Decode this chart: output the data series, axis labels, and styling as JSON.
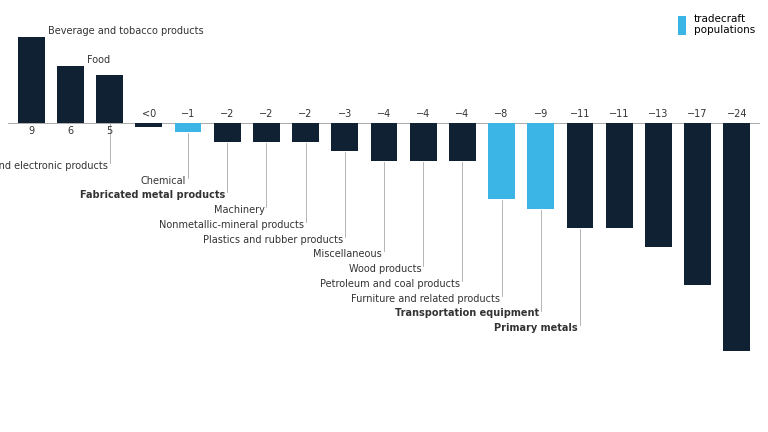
{
  "bars": [
    {
      "label": "Beverage and tobacco products",
      "value": 9,
      "disp": "9",
      "color": "#0f2133",
      "bold": false,
      "has_label": true
    },
    {
      "label": "Food",
      "value": 6,
      "disp": "6",
      "color": "#0f2133",
      "bold": false,
      "has_label": true
    },
    {
      "label": "Computer and electronic products",
      "value": 5,
      "disp": "5",
      "color": "#0f2133",
      "bold": false,
      "has_label": true
    },
    {
      "label": "",
      "value": -0.4,
      "disp": "<0",
      "color": "#0f2133",
      "bold": false,
      "has_label": false
    },
    {
      "label": "Chemical",
      "value": -1,
      "disp": "−1",
      "color": "#3ab5e6",
      "bold": false,
      "has_label": true
    },
    {
      "label": "Fabricated metal products",
      "value": -2,
      "disp": "−2",
      "color": "#0f2133",
      "bold": true,
      "has_label": true
    },
    {
      "label": "Machinery",
      "value": -2,
      "disp": "−2",
      "color": "#0f2133",
      "bold": false,
      "has_label": true
    },
    {
      "label": "Nonmetallic-mineral products",
      "value": -2,
      "disp": "−2",
      "color": "#0f2133",
      "bold": false,
      "has_label": true
    },
    {
      "label": "Plastics and rubber products",
      "value": -3,
      "disp": "−3",
      "color": "#0f2133",
      "bold": false,
      "has_label": true
    },
    {
      "label": "Miscellaneous",
      "value": -4,
      "disp": "−4",
      "color": "#0f2133",
      "bold": false,
      "has_label": true
    },
    {
      "label": "Wood products",
      "value": -4,
      "disp": "−4",
      "color": "#0f2133",
      "bold": false,
      "has_label": true
    },
    {
      "label": "Petroleum and coal products",
      "value": -4,
      "disp": "−4",
      "color": "#0f2133",
      "bold": false,
      "has_label": true
    },
    {
      "label": "Furniture and related products",
      "value": -8,
      "disp": "−8",
      "color": "#3ab5e6",
      "bold": false,
      "has_label": true
    },
    {
      "label": "Transportation equipment",
      "value": -9,
      "disp": "−9",
      "color": "#3ab5e6",
      "bold": true,
      "has_label": true
    },
    {
      "label": "Primary metals",
      "value": -11,
      "disp": "−11",
      "color": "#0f2133",
      "bold": true,
      "has_label": true
    },
    {
      "label": "",
      "value": -11,
      "disp": "−11",
      "color": "#0f2133",
      "bold": false,
      "has_label": false
    },
    {
      "label": "",
      "value": -13,
      "disp": "−13",
      "color": "#0f2133",
      "bold": false,
      "has_label": false
    },
    {
      "label": "",
      "value": -17,
      "disp": "−17",
      "color": "#0f2133",
      "bold": false,
      "has_label": false
    },
    {
      "label": "",
      "value": -24,
      "disp": "−24",
      "color": "#0f2133",
      "bold": false,
      "has_label": false
    }
  ],
  "legend_color": "#3ab5e6",
  "legend_label": "tradecraft\npopulations",
  "baseline_color": "#aaaaaa",
  "connector_color": "#aaaaaa",
  "fig_w": 7.68,
  "fig_h": 4.32,
  "dpi": 100
}
